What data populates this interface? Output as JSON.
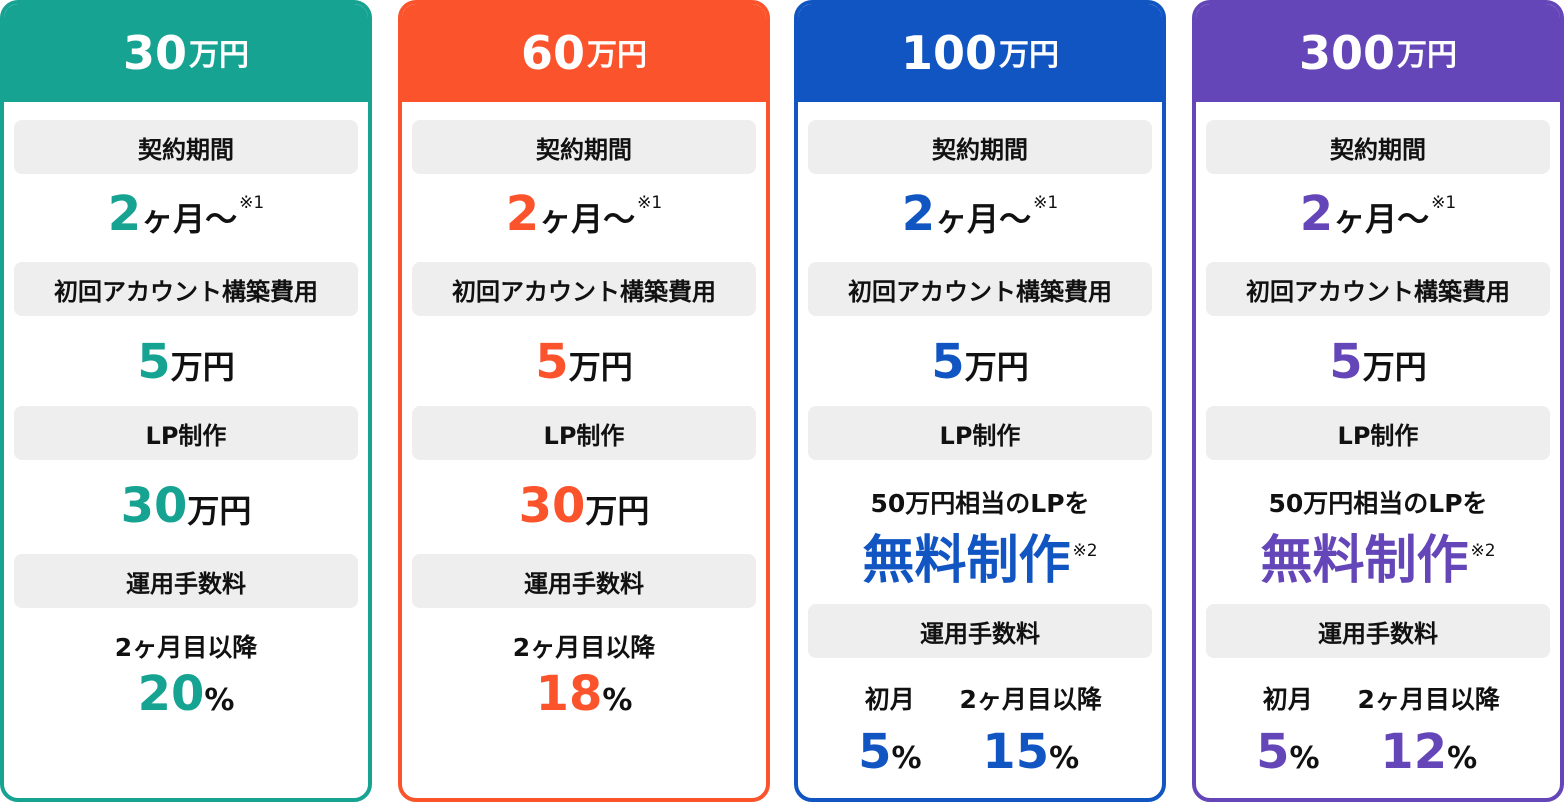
{
  "labels": {
    "period": "契約期間",
    "setup": "初回アカウント構築費用",
    "lp": "LP制作",
    "fee": "運用手数料"
  },
  "common": {
    "period_num": "2",
    "period_unit": "ヶ月〜",
    "period_note": "※1",
    "setup_num": "5",
    "setup_unit": "万円",
    "man_yen": "万円",
    "percent": "%",
    "after_second_month": "2ヶ月目以降",
    "first_month": "初月",
    "lp_free_line": "50万円相当のLPを",
    "lp_free_big": "無料制作",
    "lp_free_note": "※2"
  },
  "plans": [
    {
      "price_num": "30",
      "accent": "#16a392",
      "lp_num": "30",
      "fee_later": "20"
    },
    {
      "price_num": "60",
      "accent": "#fb542c",
      "lp_num": "30",
      "fee_later": "18"
    },
    {
      "price_num": "100",
      "accent": "#1155c2",
      "fee_first": "5",
      "fee_later": "15"
    },
    {
      "price_num": "300",
      "accent": "#6446b8",
      "fee_first": "5",
      "fee_later": "12"
    }
  ]
}
